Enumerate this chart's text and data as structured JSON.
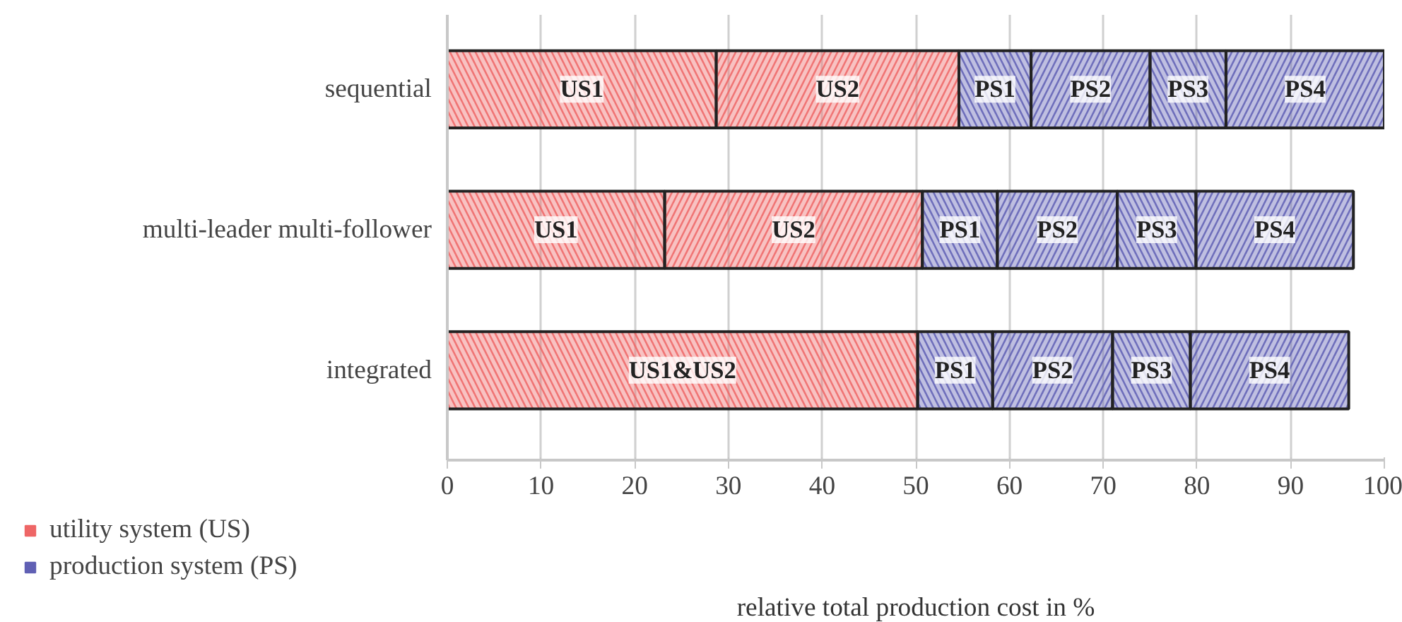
{
  "chart_data": {
    "type": "bar",
    "orientation": "horizontal",
    "stacked": true,
    "categories": [
      "sequential",
      "multi-leader multi-follower",
      "integrated"
    ],
    "series": [
      {
        "name": "utility system (US)",
        "color": "#ee6666",
        "values": [
          28.7,
          23.2,
          50.2
        ],
        "value_labels": [
          "US1",
          "US1",
          "US1&US2"
        ]
      },
      {
        "color": "#ee6666",
        "values": [
          25.9,
          27.5,
          null
        ],
        "value_labels": [
          "US2",
          "US2",
          null
        ]
      },
      {
        "name": "production system (PS)",
        "color": "#6060b4",
        "values": [
          7.7,
          8.0,
          8.0
        ],
        "value_labels": [
          "PS1",
          "PS1",
          "PS1"
        ]
      },
      {
        "color": "#6060b4",
        "values": [
          12.7,
          12.8,
          12.8
        ],
        "value_labels": [
          "PS2",
          "PS2",
          "PS2"
        ]
      },
      {
        "color": "#6060b4",
        "values": [
          8.1,
          8.4,
          8.3
        ],
        "value_labels": [
          "PS3",
          "PS3",
          "PS3"
        ]
      },
      {
        "color": "#6060b4",
        "values": [
          16.9,
          16.8,
          16.9
        ],
        "value_labels": [
          "PS4",
          "PS4",
          "PS4"
        ]
      }
    ],
    "xlim": [
      0,
      100
    ],
    "xticks": [
      0,
      10,
      20,
      30,
      40,
      50,
      60,
      70,
      80,
      90,
      100
    ],
    "xlabel": "relative total production cost in %",
    "grid": "x",
    "legend": "bottom left"
  }
}
